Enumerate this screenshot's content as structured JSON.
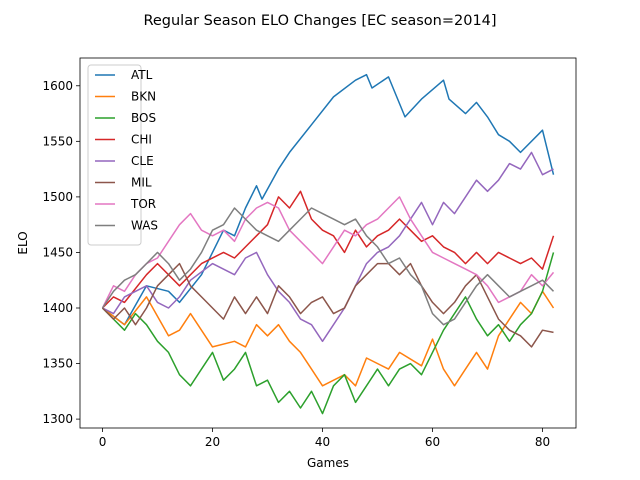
{
  "chart_data": {
    "type": "line",
    "title": "Regular Season ELO Changes [EC season=2014]",
    "xlabel": "Games",
    "ylabel": "ELO",
    "xlim": [
      -4.1,
      86.1
    ],
    "ylim": [
      1292,
      1625
    ],
    "xticks": [
      0,
      20,
      40,
      60,
      80
    ],
    "yticks": [
      1300,
      1350,
      1400,
      1450,
      1500,
      1550,
      1600
    ],
    "grid": false,
    "legend_position": "top-left",
    "series": [
      {
        "name": "ATL",
        "color": "#1f77b4",
        "points": [
          [
            0,
            1400
          ],
          [
            4,
            1385
          ],
          [
            8,
            1420
          ],
          [
            12,
            1415
          ],
          [
            14,
            1405
          ],
          [
            18,
            1430
          ],
          [
            22,
            1470
          ],
          [
            24,
            1465
          ],
          [
            26,
            1490
          ],
          [
            28,
            1510
          ],
          [
            29,
            1498
          ],
          [
            32,
            1525
          ],
          [
            34,
            1540
          ],
          [
            38,
            1565
          ],
          [
            42,
            1590
          ],
          [
            46,
            1605
          ],
          [
            48,
            1610
          ],
          [
            49,
            1598
          ],
          [
            52,
            1608
          ],
          [
            55,
            1572
          ],
          [
            58,
            1588
          ],
          [
            62,
            1605
          ],
          [
            63,
            1588
          ],
          [
            66,
            1575
          ],
          [
            68,
            1585
          ],
          [
            70,
            1572
          ],
          [
            72,
            1556
          ],
          [
            74,
            1550
          ],
          [
            76,
            1540
          ],
          [
            80,
            1560
          ],
          [
            82,
            1520
          ]
        ]
      },
      {
        "name": "BKN",
        "color": "#ff7f0e",
        "points": [
          [
            0,
            1400
          ],
          [
            4,
            1385
          ],
          [
            8,
            1410
          ],
          [
            12,
            1375
          ],
          [
            14,
            1380
          ],
          [
            16,
            1395
          ],
          [
            20,
            1365
          ],
          [
            24,
            1370
          ],
          [
            26,
            1365
          ],
          [
            28,
            1385
          ],
          [
            30,
            1375
          ],
          [
            32,
            1385
          ],
          [
            34,
            1370
          ],
          [
            36,
            1360
          ],
          [
            38,
            1345
          ],
          [
            40,
            1330
          ],
          [
            44,
            1340
          ],
          [
            46,
            1330
          ],
          [
            48,
            1355
          ],
          [
            52,
            1345
          ],
          [
            54,
            1360
          ],
          [
            58,
            1348
          ],
          [
            60,
            1372
          ],
          [
            62,
            1345
          ],
          [
            64,
            1330
          ],
          [
            66,
            1345
          ],
          [
            68,
            1360
          ],
          [
            70,
            1345
          ],
          [
            72,
            1375
          ],
          [
            74,
            1390
          ],
          [
            76,
            1405
          ],
          [
            78,
            1395
          ],
          [
            80,
            1415
          ],
          [
            82,
            1400
          ]
        ]
      },
      {
        "name": "BOS",
        "color": "#2ca02c",
        "points": [
          [
            0,
            1400
          ],
          [
            2,
            1390
          ],
          [
            4,
            1380
          ],
          [
            6,
            1395
          ],
          [
            8,
            1385
          ],
          [
            10,
            1370
          ],
          [
            12,
            1360
          ],
          [
            14,
            1340
          ],
          [
            16,
            1330
          ],
          [
            18,
            1345
          ],
          [
            20,
            1360
          ],
          [
            22,
            1335
          ],
          [
            24,
            1345
          ],
          [
            26,
            1360
          ],
          [
            28,
            1330
          ],
          [
            30,
            1335
          ],
          [
            32,
            1315
          ],
          [
            34,
            1325
          ],
          [
            36,
            1310
          ],
          [
            38,
            1325
          ],
          [
            40,
            1305
          ],
          [
            42,
            1330
          ],
          [
            44,
            1340
          ],
          [
            46,
            1315
          ],
          [
            48,
            1330
          ],
          [
            50,
            1345
          ],
          [
            52,
            1330
          ],
          [
            54,
            1345
          ],
          [
            56,
            1350
          ],
          [
            58,
            1340
          ],
          [
            60,
            1360
          ],
          [
            62,
            1380
          ],
          [
            64,
            1395
          ],
          [
            66,
            1410
          ],
          [
            68,
            1390
          ],
          [
            70,
            1375
          ],
          [
            72,
            1385
          ],
          [
            74,
            1370
          ],
          [
            76,
            1385
          ],
          [
            78,
            1395
          ],
          [
            80,
            1415
          ],
          [
            82,
            1450
          ]
        ]
      },
      {
        "name": "CHI",
        "color": "#d62728",
        "points": [
          [
            0,
            1400
          ],
          [
            2,
            1410
          ],
          [
            4,
            1405
          ],
          [
            8,
            1430
          ],
          [
            10,
            1440
          ],
          [
            14,
            1420
          ],
          [
            18,
            1440
          ],
          [
            22,
            1450
          ],
          [
            24,
            1445
          ],
          [
            26,
            1455
          ],
          [
            28,
            1465
          ],
          [
            30,
            1475
          ],
          [
            32,
            1500
          ],
          [
            34,
            1490
          ],
          [
            36,
            1505
          ],
          [
            38,
            1480
          ],
          [
            40,
            1470
          ],
          [
            42,
            1465
          ],
          [
            44,
            1450
          ],
          [
            46,
            1470
          ],
          [
            48,
            1455
          ],
          [
            50,
            1465
          ],
          [
            52,
            1470
          ],
          [
            54,
            1480
          ],
          [
            56,
            1470
          ],
          [
            58,
            1460
          ],
          [
            60,
            1465
          ],
          [
            62,
            1455
          ],
          [
            64,
            1450
          ],
          [
            66,
            1440
          ],
          [
            68,
            1450
          ],
          [
            70,
            1440
          ],
          [
            72,
            1450
          ],
          [
            74,
            1445
          ],
          [
            76,
            1440
          ],
          [
            78,
            1445
          ],
          [
            80,
            1435
          ],
          [
            82,
            1465
          ]
        ]
      },
      {
        "name": "CLE",
        "color": "#9467bd",
        "points": [
          [
            0,
            1400
          ],
          [
            2,
            1395
          ],
          [
            4,
            1410
          ],
          [
            8,
            1420
          ],
          [
            10,
            1405
          ],
          [
            12,
            1400
          ],
          [
            14,
            1410
          ],
          [
            16,
            1425
          ],
          [
            20,
            1440
          ],
          [
            24,
            1430
          ],
          [
            26,
            1445
          ],
          [
            28,
            1450
          ],
          [
            30,
            1430
          ],
          [
            32,
            1415
          ],
          [
            34,
            1405
          ],
          [
            36,
            1390
          ],
          [
            38,
            1385
          ],
          [
            40,
            1370
          ],
          [
            42,
            1385
          ],
          [
            44,
            1400
          ],
          [
            46,
            1420
          ],
          [
            48,
            1440
          ],
          [
            50,
            1450
          ],
          [
            52,
            1455
          ],
          [
            54,
            1465
          ],
          [
            56,
            1480
          ],
          [
            58,
            1495
          ],
          [
            60,
            1475
          ],
          [
            62,
            1495
          ],
          [
            64,
            1485
          ],
          [
            66,
            1500
          ],
          [
            68,
            1515
          ],
          [
            70,
            1505
          ],
          [
            72,
            1515
          ],
          [
            74,
            1530
          ],
          [
            76,
            1525
          ],
          [
            78,
            1540
          ],
          [
            80,
            1520
          ],
          [
            82,
            1525
          ]
        ]
      },
      {
        "name": "MIL",
        "color": "#8c564b",
        "points": [
          [
            0,
            1400
          ],
          [
            2,
            1390
          ],
          [
            4,
            1400
          ],
          [
            6,
            1385
          ],
          [
            8,
            1400
          ],
          [
            10,
            1420
          ],
          [
            12,
            1430
          ],
          [
            14,
            1440
          ],
          [
            16,
            1420
          ],
          [
            18,
            1410
          ],
          [
            20,
            1400
          ],
          [
            22,
            1390
          ],
          [
            24,
            1410
          ],
          [
            26,
            1395
          ],
          [
            28,
            1410
          ],
          [
            30,
            1395
          ],
          [
            32,
            1420
          ],
          [
            34,
            1410
          ],
          [
            36,
            1395
          ],
          [
            38,
            1405
          ],
          [
            40,
            1410
          ],
          [
            42,
            1395
          ],
          [
            44,
            1400
          ],
          [
            46,
            1420
          ],
          [
            48,
            1430
          ],
          [
            50,
            1440
          ],
          [
            52,
            1440
          ],
          [
            54,
            1430
          ],
          [
            56,
            1440
          ],
          [
            58,
            1420
          ],
          [
            60,
            1405
          ],
          [
            62,
            1395
          ],
          [
            64,
            1405
          ],
          [
            66,
            1420
          ],
          [
            68,
            1430
          ],
          [
            70,
            1410
          ],
          [
            72,
            1390
          ],
          [
            74,
            1380
          ],
          [
            76,
            1375
          ],
          [
            78,
            1365
          ],
          [
            80,
            1380
          ],
          [
            82,
            1378
          ]
        ]
      },
      {
        "name": "TOR",
        "color": "#e377c2",
        "points": [
          [
            0,
            1400
          ],
          [
            2,
            1420
          ],
          [
            4,
            1415
          ],
          [
            6,
            1430
          ],
          [
            8,
            1440
          ],
          [
            10,
            1445
          ],
          [
            12,
            1460
          ],
          [
            14,
            1475
          ],
          [
            16,
            1485
          ],
          [
            18,
            1470
          ],
          [
            20,
            1465
          ],
          [
            22,
            1470
          ],
          [
            24,
            1460
          ],
          [
            26,
            1480
          ],
          [
            28,
            1490
          ],
          [
            30,
            1495
          ],
          [
            32,
            1490
          ],
          [
            34,
            1470
          ],
          [
            36,
            1460
          ],
          [
            38,
            1450
          ],
          [
            40,
            1440
          ],
          [
            42,
            1455
          ],
          [
            44,
            1470
          ],
          [
            46,
            1465
          ],
          [
            48,
            1475
          ],
          [
            50,
            1480
          ],
          [
            52,
            1490
          ],
          [
            54,
            1500
          ],
          [
            56,
            1480
          ],
          [
            58,
            1465
          ],
          [
            60,
            1450
          ],
          [
            62,
            1445
          ],
          [
            64,
            1440
          ],
          [
            66,
            1435
          ],
          [
            68,
            1430
          ],
          [
            70,
            1420
          ],
          [
            72,
            1405
          ],
          [
            74,
            1410
          ],
          [
            76,
            1415
          ],
          [
            78,
            1430
          ],
          [
            80,
            1420
          ],
          [
            82,
            1432
          ]
        ]
      },
      {
        "name": "WAS",
        "color": "#7f7f7f",
        "points": [
          [
            0,
            1400
          ],
          [
            2,
            1415
          ],
          [
            4,
            1425
          ],
          [
            6,
            1430
          ],
          [
            8,
            1440
          ],
          [
            10,
            1450
          ],
          [
            12,
            1440
          ],
          [
            14,
            1425
          ],
          [
            16,
            1435
          ],
          [
            18,
            1450
          ],
          [
            20,
            1470
          ],
          [
            22,
            1475
          ],
          [
            24,
            1490
          ],
          [
            26,
            1480
          ],
          [
            28,
            1470
          ],
          [
            30,
            1465
          ],
          [
            32,
            1460
          ],
          [
            34,
            1470
          ],
          [
            36,
            1480
          ],
          [
            38,
            1490
          ],
          [
            40,
            1485
          ],
          [
            42,
            1480
          ],
          [
            44,
            1475
          ],
          [
            46,
            1480
          ],
          [
            48,
            1465
          ],
          [
            50,
            1455
          ],
          [
            52,
            1440
          ],
          [
            54,
            1445
          ],
          [
            56,
            1430
          ],
          [
            58,
            1420
          ],
          [
            60,
            1395
          ],
          [
            62,
            1385
          ],
          [
            64,
            1390
          ],
          [
            66,
            1405
          ],
          [
            68,
            1420
          ],
          [
            70,
            1430
          ],
          [
            72,
            1420
          ],
          [
            74,
            1410
          ],
          [
            76,
            1415
          ],
          [
            78,
            1420
          ],
          [
            80,
            1425
          ],
          [
            82,
            1415
          ]
        ]
      }
    ]
  }
}
